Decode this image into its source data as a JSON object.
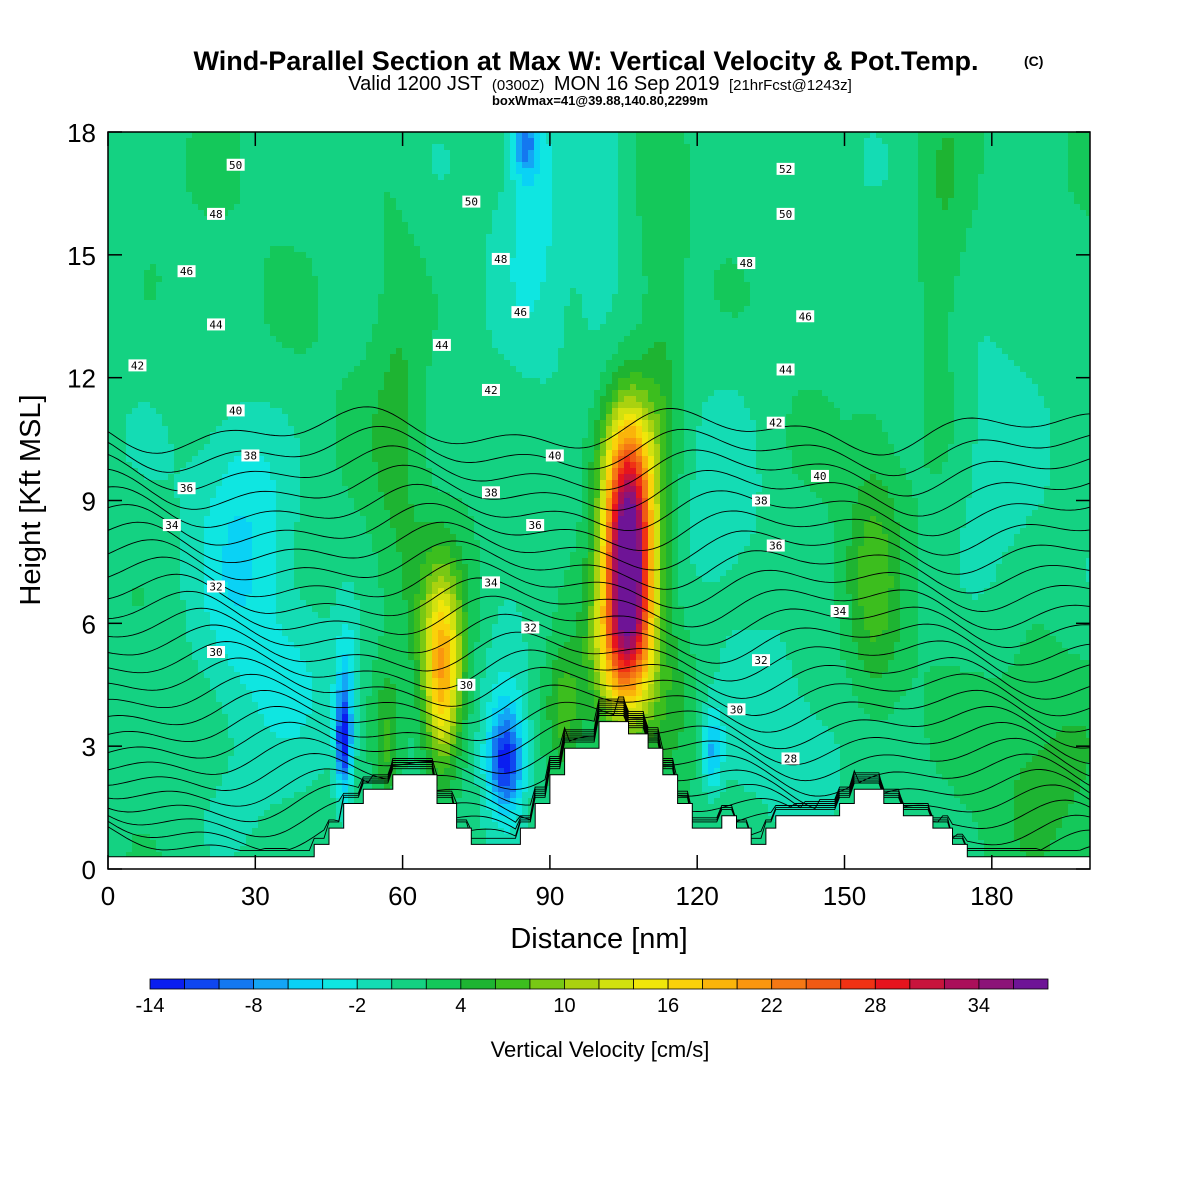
{
  "header": {
    "title": "Wind-Parallel Section at Max W: Vertical Velocity & Pot.Temp.",
    "copyright_mark": "(C)",
    "valid_prefix": "Valid 1200 JST",
    "valid_zulu": "(0300Z)",
    "valid_date": "MON 16 Sep 2019",
    "forecast_info": "[21hrFcst@1243z]",
    "boxmax": "boxWmax=41@39.88,140.80,2299m"
  },
  "chart_data": {
    "type": "heatmap",
    "title": "Wind-Parallel Section at Max W: Vertical Velocity & Pot.Temp.",
    "xlabel": "Distance [nm]",
    "ylabel": "Height [Kft MSL]",
    "xlim": [
      0,
      200
    ],
    "ylim": [
      0,
      18
    ],
    "x_ticks": [
      0,
      30,
      60,
      90,
      120,
      150,
      180
    ],
    "y_ticks": [
      0,
      3,
      6,
      9,
      12,
      15,
      18
    ],
    "colorbar": {
      "label": "Vertical Velocity [cm/s]",
      "tick_values": [
        -14,
        -8,
        -2,
        4,
        10,
        16,
        22,
        28,
        34
      ],
      "min": -14,
      "max": 38,
      "step": 2,
      "colors": [
        "#0a1ef0",
        "#0f46f0",
        "#1478f0",
        "#14a5f5",
        "#0ad2f5",
        "#0fe6e1",
        "#14dcb4",
        "#14d282",
        "#14c85a",
        "#1eb432",
        "#3cbe1e",
        "#78c814",
        "#aad20f",
        "#d2e10f",
        "#f0e60a",
        "#fad20a",
        "#fab40a",
        "#fa960f",
        "#f57814",
        "#f05a14",
        "#f03214",
        "#e6141e",
        "#c8143c",
        "#aa0f5a",
        "#8c1478",
        "#6e1496"
      ]
    },
    "terrain": [
      [
        0,
        0.3
      ],
      [
        7,
        0.3
      ],
      [
        9,
        0.3
      ],
      [
        36,
        0.3
      ],
      [
        42,
        0.3
      ],
      [
        42,
        0.6
      ],
      [
        45,
        0.6
      ],
      [
        45,
        1.0
      ],
      [
        48,
        1.0
      ],
      [
        48,
        1.6
      ],
      [
        52,
        1.6
      ],
      [
        52,
        1.95
      ],
      [
        58,
        1.95
      ],
      [
        58,
        2.3
      ],
      [
        67,
        2.3
      ],
      [
        67,
        1.6
      ],
      [
        71,
        1.6
      ],
      [
        71,
        1.0
      ],
      [
        74,
        1.0
      ],
      [
        74,
        0.6
      ],
      [
        84,
        0.6
      ],
      [
        84,
        1.0
      ],
      [
        87,
        1.0
      ],
      [
        87,
        1.6
      ],
      [
        90,
        1.6
      ],
      [
        90,
        2.3
      ],
      [
        93,
        2.3
      ],
      [
        93,
        2.95
      ],
      [
        100,
        2.95
      ],
      [
        100,
        3.6
      ],
      [
        106,
        3.6
      ],
      [
        106,
        3.3
      ],
      [
        110,
        3.3
      ],
      [
        110,
        2.95
      ],
      [
        113,
        2.95
      ],
      [
        113,
        2.3
      ],
      [
        116,
        2.3
      ],
      [
        116,
        1.6
      ],
      [
        119,
        1.6
      ],
      [
        119,
        1.0
      ],
      [
        125,
        1.0
      ],
      [
        125,
        1.3
      ],
      [
        128,
        1.3
      ],
      [
        128,
        1.0
      ],
      [
        131,
        1.0
      ],
      [
        131,
        0.6
      ],
      [
        134,
        0.6
      ],
      [
        134,
        1.0
      ],
      [
        136,
        1.0
      ],
      [
        136,
        1.3
      ],
      [
        149,
        1.3
      ],
      [
        149,
        1.6
      ],
      [
        152,
        1.6
      ],
      [
        152,
        1.95
      ],
      [
        158,
        1.95
      ],
      [
        158,
        1.6
      ],
      [
        162,
        1.6
      ],
      [
        162,
        1.3
      ],
      [
        168,
        1.3
      ],
      [
        168,
        1.0
      ],
      [
        172,
        1.0
      ],
      [
        172,
        0.6
      ],
      [
        175,
        0.6
      ],
      [
        175,
        0.3
      ],
      [
        200,
        0.3
      ]
    ],
    "w_features": [
      {
        "x": 106,
        "y": 7.2,
        "sx": 3.5,
        "sy": 1.8,
        "value": 37
      },
      {
        "x": 104,
        "y": 5.2,
        "sx": 4.5,
        "sy": 1.2,
        "value": 10
      },
      {
        "x": 106,
        "y": 9.5,
        "sx": 3.5,
        "sy": 1.5,
        "value": 12
      },
      {
        "x": 104,
        "y": 10.4,
        "sx": 6,
        "sy": 1.2,
        "value": 4
      },
      {
        "x": 68,
        "y": 4.6,
        "sx": 2.7,
        "sy": 1.5,
        "value": 17
      },
      {
        "x": 68,
        "y": 6.2,
        "sx": 4,
        "sy": 1.4,
        "value": 4
      },
      {
        "x": 81,
        "y": 2.6,
        "sx": 2.6,
        "sy": 0.9,
        "value": -13
      },
      {
        "x": 81,
        "y": 4.2,
        "sx": 4,
        "sy": 1.4,
        "value": -4
      },
      {
        "x": 48,
        "y": 3.1,
        "sx": 1.1,
        "sy": 0.8,
        "value": -13
      },
      {
        "x": 48.5,
        "y": 4.5,
        "sx": 1.6,
        "sy": 1.2,
        "value": -5
      },
      {
        "x": 123,
        "y": 2.9,
        "sx": 1.5,
        "sy": 0.7,
        "value": -7
      },
      {
        "x": 28,
        "y": 6.8,
        "sx": 7,
        "sy": 2.5,
        "value": -4
      },
      {
        "x": 27,
        "y": 9.5,
        "sx": 6,
        "sy": 1.5,
        "value": -2
      },
      {
        "x": 39,
        "y": 4.5,
        "sx": 6,
        "sy": 1.2,
        "value": -2
      },
      {
        "x": 87,
        "y": 16.5,
        "sx": 5,
        "sy": 2.5,
        "value": -4
      },
      {
        "x": 85,
        "y": 17.7,
        "sx": 2,
        "sy": 0.6,
        "value": -8
      },
      {
        "x": 100,
        "y": 16,
        "sx": 4,
        "sy": 3,
        "value": -3
      },
      {
        "x": 125,
        "y": 9,
        "sx": 8,
        "sy": 3,
        "value": -2
      },
      {
        "x": 180,
        "y": 9,
        "sx": 6,
        "sy": 3,
        "value": -2
      },
      {
        "x": 140,
        "y": 3,
        "sx": 8,
        "sy": 1.4,
        "value": -2
      },
      {
        "x": 59,
        "y": 11,
        "sx": 4,
        "sy": 4,
        "value": 3
      },
      {
        "x": 113,
        "y": 12,
        "sx": 3,
        "sy": 4,
        "value": 3
      },
      {
        "x": 156,
        "y": 7,
        "sx": 4,
        "sy": 2.5,
        "value": 5
      },
      {
        "x": 170,
        "y": 15,
        "sx": 4,
        "sy": 3,
        "value": 3
      },
      {
        "x": 57,
        "y": 3,
        "sx": 2,
        "sy": 1.2,
        "value": 5
      },
      {
        "x": 93,
        "y": 3.9,
        "sx": 2.5,
        "sy": 1,
        "value": 6
      },
      {
        "x": 190,
        "y": 2.5,
        "sx": 10,
        "sy": 2,
        "value": 3
      },
      {
        "x": 115,
        "y": 4.5,
        "sx": 5,
        "sy": 1.8,
        "value": 3
      },
      {
        "x": 25,
        "y": 1.5,
        "sx": 10,
        "sy": 1.3,
        "value": -1.5
      }
    ],
    "theta_contours": {
      "start": 28,
      "end": 53,
      "step": 1,
      "base_left": 0.7,
      "base_right": 0.0,
      "gradient": 0.32,
      "right_stretch": 0.28,
      "comment_none": ""
    },
    "theta_labels": [
      {
        "x": 26,
        "y": 17.2,
        "text": "50"
      },
      {
        "x": 22,
        "y": 16.0,
        "text": "48"
      },
      {
        "x": 16,
        "y": 14.6,
        "text": "46"
      },
      {
        "x": 22,
        "y": 13.3,
        "text": "44"
      },
      {
        "x": 6,
        "y": 12.3,
        "text": "42"
      },
      {
        "x": 26,
        "y": 11.2,
        "text": "40"
      },
      {
        "x": 29,
        "y": 10.1,
        "text": "38"
      },
      {
        "x": 16,
        "y": 9.3,
        "text": "36"
      },
      {
        "x": 13,
        "y": 8.4,
        "text": "34"
      },
      {
        "x": 22,
        "y": 6.9,
        "text": "32"
      },
      {
        "x": 22,
        "y": 5.3,
        "text": "30"
      },
      {
        "x": 74,
        "y": 16.3,
        "text": "50"
      },
      {
        "x": 80,
        "y": 14.9,
        "text": "48"
      },
      {
        "x": 84,
        "y": 13.6,
        "text": "46"
      },
      {
        "x": 68,
        "y": 12.8,
        "text": "44"
      },
      {
        "x": 78,
        "y": 11.7,
        "text": "42"
      },
      {
        "x": 91,
        "y": 10.1,
        "text": "40"
      },
      {
        "x": 78,
        "y": 9.2,
        "text": "38"
      },
      {
        "x": 87,
        "y": 8.4,
        "text": "36"
      },
      {
        "x": 78,
        "y": 7.0,
        "text": "34"
      },
      {
        "x": 86,
        "y": 5.9,
        "text": "32"
      },
      {
        "x": 73,
        "y": 4.5,
        "text": "30"
      },
      {
        "x": 138,
        "y": 17.1,
        "text": "52"
      },
      {
        "x": 138,
        "y": 16.0,
        "text": "50"
      },
      {
        "x": 130,
        "y": 14.8,
        "text": "48"
      },
      {
        "x": 142,
        "y": 13.5,
        "text": "46"
      },
      {
        "x": 138,
        "y": 12.2,
        "text": "44"
      },
      {
        "x": 136,
        "y": 10.9,
        "text": "42"
      },
      {
        "x": 145,
        "y": 9.6,
        "text": "40"
      },
      {
        "x": 133,
        "y": 9.0,
        "text": "38"
      },
      {
        "x": 136,
        "y": 7.9,
        "text": "36"
      },
      {
        "x": 149,
        "y": 6.3,
        "text": "34"
      },
      {
        "x": 133,
        "y": 5.1,
        "text": "32"
      },
      {
        "x": 128,
        "y": 3.9,
        "text": "30"
      },
      {
        "x": 139,
        "y": 2.7,
        "text": "28"
      }
    ]
  }
}
